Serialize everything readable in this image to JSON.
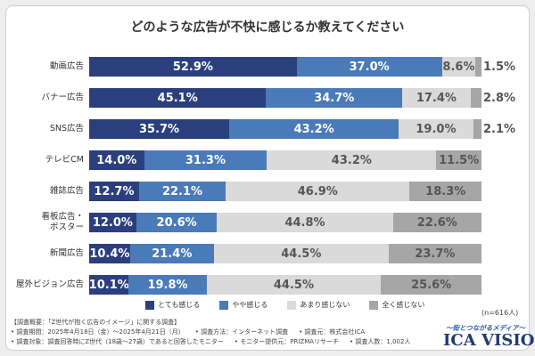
{
  "chart_data": {
    "type": "stacked-bar-horizontal",
    "title": "どのような広告が不快に感じるか教えてください",
    "categories": [
      "動画広告",
      "バナー広告",
      "SNS広告",
      "テレビCM",
      "雑誌広告",
      "看板広告・\nポスター",
      "新聞広告",
      "屋外ビジョン広告"
    ],
    "series": [
      {
        "name": "とても感じる",
        "color": "#2b3f7e",
        "label_color": "#ffffff",
        "values": [
          52.9,
          45.1,
          35.7,
          14.0,
          12.7,
          12.0,
          10.4,
          10.1
        ],
        "value_labels": [
          "52.9%",
          "45.1%",
          "35.7%",
          "14.0%",
          "12.7%",
          "12.0%",
          "10.4%",
          "10.1%"
        ]
      },
      {
        "name": "やや感じる",
        "color": "#4a7ab8",
        "label_color": "#ffffff",
        "values": [
          37.0,
          34.7,
          43.2,
          31.3,
          22.1,
          20.6,
          21.4,
          19.8
        ],
        "value_labels": [
          "37.0%",
          "34.7%",
          "43.2%",
          "31.3%",
          "22.1%",
          "20.6%",
          "21.4%",
          "19.8%"
        ]
      },
      {
        "name": "あまり感じない",
        "color": "#dadada",
        "label_color": "#555555",
        "values": [
          8.6,
          17.4,
          19.0,
          43.2,
          46.9,
          44.8,
          44.5,
          44.5
        ],
        "value_labels": [
          "8.6%",
          "17.4%",
          "19.0%",
          "43.2%",
          "46.9%",
          "44.8%",
          "44.5%",
          "44.5%"
        ]
      },
      {
        "name": "全く感じない",
        "color": "#a6a6a6",
        "label_color": "#555555",
        "values": [
          1.5,
          2.8,
          2.1,
          11.5,
          18.3,
          22.6,
          23.7,
          25.6
        ],
        "value_labels": [
          "1.5%",
          "2.8%",
          "2.1%",
          "11.5%",
          "18.3%",
          "22.6%",
          "23.7%",
          "25.6%"
        ]
      }
    ],
    "sample_note": "(n=616人)"
  },
  "notes": {
    "heading": "【調査概要：「Z世代が抱く広告のイメージ」に関する調査】",
    "lines": [
      [
        "• 調査期間：2025年4月18日（金）～2025年4月21日（月）",
        "• 調査方法：インターネット調査",
        "• 調査元：株式会社ICA"
      ],
      [
        "• 調査対象：調査回答時にZ世代（18歳～27歳）であると回答したモニター",
        "• モニター提供元：PRIZMAリサーチ",
        "• 調査人数：1,002人"
      ]
    ]
  },
  "logo": {
    "tagline": "〜街とつながるメディア〜",
    "name": "ICA VISION"
  }
}
